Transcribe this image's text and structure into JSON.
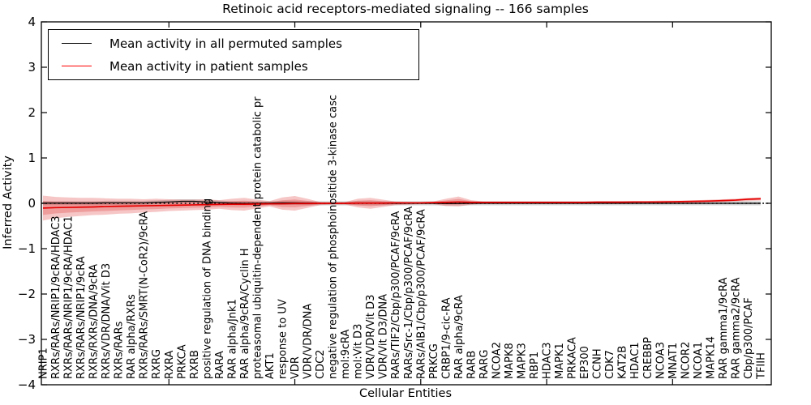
{
  "chart_data": {
    "type": "line",
    "title": "Retinoic acid receptors-mediated signaling -- 166 samples",
    "xlabel": "Cellular Entities",
    "ylabel": "Inferred Activity",
    "ylim": [
      -4,
      4
    ],
    "ytick_labels": [
      "4",
      "3",
      "2",
      "1",
      "0",
      "−1",
      "−2",
      "−3",
      "−4"
    ],
    "ytick_values": [
      4,
      3,
      2,
      1,
      0,
      -1,
      -2,
      -3,
      -4
    ],
    "grid": "off",
    "legend_position": "upper-left",
    "legend": [
      {
        "label": "Mean activity in all permuted samples",
        "color": "#000000"
      },
      {
        "label": "Mean activity in patient samples",
        "color": "#ff0000"
      }
    ],
    "zero_line": {
      "style": "dotted",
      "color": "#000000",
      "y": 0
    },
    "categories": [
      "NRIP1",
      "RXRs/RARs/NRIP1/9cRA/HDAC3",
      "RXRs/RARs/NRIP1/9cRA/HDAC1",
      "RXRs/RARs/NRIP1/9cRA",
      "RXRs/RXRs/DNA/9cRA",
      "RXRs/VDR/DNA/Vit D3",
      "RXRs/RARs",
      "RAR alpha/RXRs",
      "RXRs/RARs/SMRT(N-CoR2)/9cRA",
      "RXRG",
      "RXRA",
      "PRKCA",
      "RXRB",
      "positive regulation of DNA binding",
      "RARA",
      "RAR alpha/Jnk1",
      "RAR alpha/9cRA/Cyclin H",
      "proteasomal ubiquitin-dependent protein catabolic pr",
      "AKT1",
      "response to UV",
      "VDR",
      "VDR/VDR/DNA",
      "CDC2",
      "negative regulation of phosphoinositide 3-kinase casc",
      "mol:9cRA",
      "mol:Vit D3",
      "VDR/VDR/Vit D3",
      "VDR/Vit D3/DNA",
      "RARs/TIF2/Cbp/p300/PCAF/9cRA",
      "RARs/Src-1/Cbp/p300/PCAF/9cRA",
      "RARs/AIB1/Cbp/p300/PCAF/9cRA",
      "PRKCG",
      "CRBP1/9-cic-RA",
      "RAR alpha/9cRA",
      "RARB",
      "RARG",
      "NCOA2",
      "MAPK8",
      "MAPK3",
      "RBP1",
      "HDAC3",
      "MAPK1",
      "PRKACA",
      "EP300",
      "CCNH",
      "CDK7",
      "KAT2B",
      "HDAC1",
      "CREBBP",
      "NCOA3",
      "MNAT1",
      "NCOR2",
      "NCOA1",
      "MAPK14",
      "RAR gamma1/9cRA",
      "RAR gamma2/9cRA",
      "Cbp/p300/PCAF",
      "TFIIH"
    ],
    "series": [
      {
        "name": "Mean activity in all permuted samples",
        "color": "#000000",
        "values": [
          0.005,
          0.005,
          0.005,
          0.005,
          0.005,
          0.01,
          0.01,
          0.01,
          0.01,
          0.02,
          0.03,
          0.045,
          0.045,
          0.03,
          0.015,
          0.005,
          0,
          0,
          0.005,
          0.01,
          0.01,
          0.005,
          0,
          0,
          0,
          0.005,
          0.005,
          0,
          0,
          0,
          0,
          0,
          -0.005,
          -0.005,
          0,
          0,
          0,
          0,
          0,
          0,
          0,
          0,
          0,
          0,
          0,
          0,
          0,
          0,
          0,
          0,
          0,
          0,
          0,
          0,
          0,
          0,
          0,
          0
        ],
        "band_halfwidth": 0.045
      },
      {
        "name": "Mean activity in patient samples",
        "color": "#e60000",
        "values": [
          -0.105,
          -0.095,
          -0.09,
          -0.085,
          -0.08,
          -0.07,
          -0.065,
          -0.06,
          -0.055,
          -0.05,
          -0.045,
          -0.04,
          -0.035,
          -0.03,
          -0.025,
          -0.02,
          -0.02,
          -0.015,
          -0.01,
          -0.01,
          -0.005,
          -0.005,
          0,
          0,
          0,
          0.005,
          0.005,
          0.005,
          0.01,
          0.01,
          0.01,
          0.015,
          0.02,
          0.03,
          0.02,
          0.02,
          0.02,
          0.02,
          0.02,
          0.02,
          0.02,
          0.02,
          0.02,
          0.02,
          0.025,
          0.025,
          0.025,
          0.03,
          0.03,
          0.03,
          0.035,
          0.04,
          0.045,
          0.05,
          0.06,
          0.07,
          0.09,
          0.1
        ],
        "band_upper": [
          0.17,
          0.14,
          0.13,
          0.12,
          0.12,
          0.11,
          0.1,
          0.1,
          0.09,
          0.1,
          0.09,
          0.08,
          0.08,
          0.09,
          0.07,
          0.1,
          0.12,
          0.08,
          0.05,
          0.13,
          0.16,
          0.1,
          0.03,
          0.02,
          0.03,
          0.1,
          0.12,
          0.08,
          0.04,
          0.03,
          0.03,
          0.04,
          0.1,
          0.15,
          0.07,
          0.04,
          0.04,
          0.04,
          0.04,
          0.04,
          0.04,
          0.04,
          0.04,
          0.04,
          0.05,
          0.05,
          0.05,
          0.05,
          0.05,
          0.06,
          0.06,
          0.06,
          0.07,
          0.08,
          0.09,
          0.1,
          0.12,
          0.13
        ],
        "band_lower": [
          -0.38,
          -0.33,
          -0.3,
          -0.28,
          -0.26,
          -0.25,
          -0.23,
          -0.22,
          -0.2,
          -0.19,
          -0.17,
          -0.16,
          -0.15,
          -0.14,
          -0.12,
          -0.15,
          -0.16,
          -0.11,
          -0.07,
          -0.14,
          -0.16,
          -0.1,
          -0.04,
          -0.03,
          -0.03,
          -0.09,
          -0.12,
          -0.08,
          -0.04,
          -0.03,
          -0.02,
          -0.02,
          -0.06,
          -0.07,
          -0.03,
          -0.01,
          -0.01,
          -0.01,
          -0.01,
          -0.01,
          -0.01,
          -0.01,
          -0.01,
          -0.01,
          -0.01,
          -0.01,
          0,
          0,
          0,
          0,
          0,
          0.01,
          0.01,
          0.02,
          0.03,
          0.04,
          0.05,
          0.06
        ]
      }
    ],
    "colors": {
      "patient_line": "#e60000",
      "permuted_line": "#000000",
      "patient_band": "rgba(222,45,45,0.27)",
      "permuted_band": "rgba(128,128,128,0.35)",
      "frame": "#000000",
      "background": "#ffffff"
    }
  }
}
